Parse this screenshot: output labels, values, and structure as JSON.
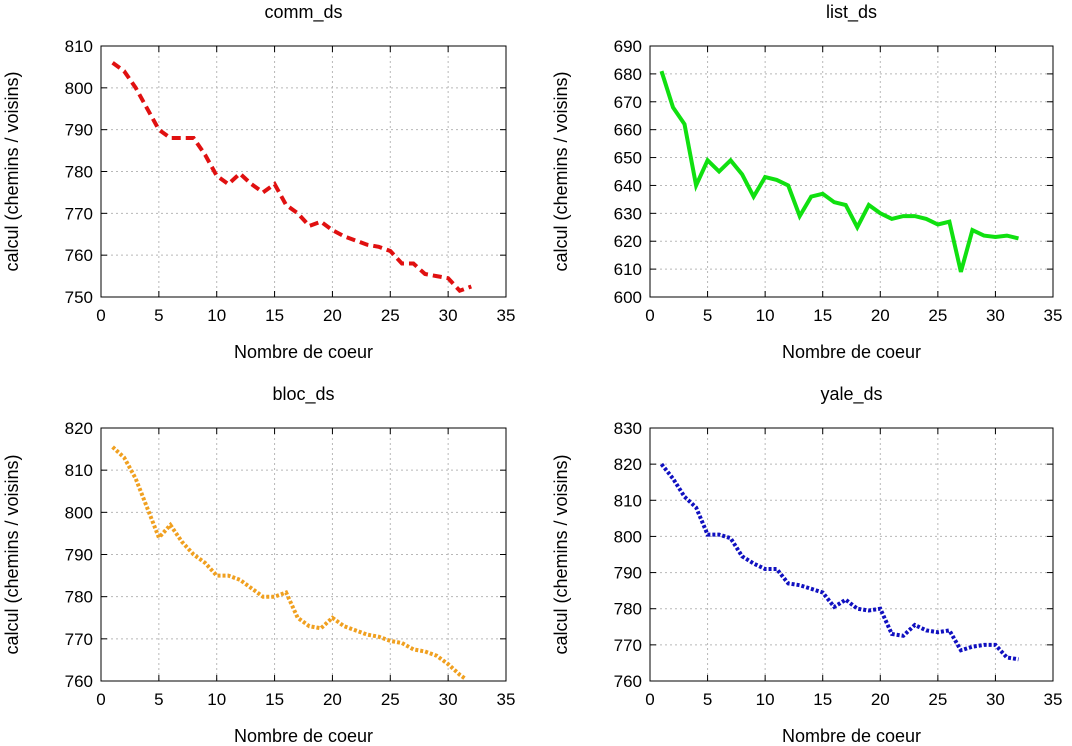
{
  "chart_data": [
    {
      "type": "line",
      "title": "comm_ds",
      "xlabel": "Nombre de coeur",
      "ylabel": "calcul (chemins / voisins)",
      "xlim": [
        0,
        35
      ],
      "ylim": [
        750,
        810
      ],
      "xticks": [
        0,
        5,
        10,
        15,
        20,
        25,
        30,
        35
      ],
      "yticks": [
        750,
        760,
        770,
        780,
        790,
        800,
        810
      ],
      "grid": true,
      "line_style": "dashed",
      "series": [
        {
          "color": "#e01010",
          "x": [
            1,
            2,
            3,
            4,
            5,
            6,
            7,
            8,
            9,
            10,
            11,
            12,
            13,
            14,
            15,
            16,
            17,
            18,
            19,
            20,
            21,
            22,
            23,
            24,
            25,
            26,
            27,
            28,
            29,
            30,
            31,
            32
          ],
          "y": [
            806,
            804,
            800,
            795,
            790,
            788,
            788,
            788,
            784,
            779,
            777,
            779.5,
            777,
            775,
            777,
            772,
            770,
            767,
            768,
            766,
            764.5,
            763.5,
            762.5,
            762,
            761,
            758,
            758,
            755.5,
            755,
            754.5,
            751.5,
            752.5
          ]
        }
      ]
    },
    {
      "type": "line",
      "title": "list_ds",
      "xlabel": "Nombre de coeur",
      "ylabel": "calcul (chemins / voisins)",
      "xlim": [
        0,
        35
      ],
      "ylim": [
        600,
        690
      ],
      "xticks": [
        0,
        5,
        10,
        15,
        20,
        25,
        30,
        35
      ],
      "yticks": [
        600,
        610,
        620,
        630,
        640,
        650,
        660,
        670,
        680,
        690
      ],
      "grid": true,
      "line_style": "solid",
      "series": [
        {
          "color": "#10e010",
          "x": [
            1,
            2,
            3,
            4,
            5,
            6,
            7,
            8,
            9,
            10,
            11,
            12,
            13,
            14,
            15,
            16,
            17,
            18,
            19,
            20,
            21,
            22,
            23,
            24,
            25,
            26,
            27,
            28,
            29,
            30,
            31,
            32
          ],
          "y": [
            681,
            668,
            662,
            640,
            649,
            645,
            649,
            644,
            636,
            643,
            642,
            640,
            629,
            636,
            637,
            634,
            633,
            625,
            633,
            630,
            628,
            629,
            629,
            628,
            626,
            627,
            609,
            624,
            622,
            621.5,
            622,
            621
          ]
        }
      ]
    },
    {
      "type": "line",
      "title": "bloc_ds",
      "xlabel": "Nombre de coeur",
      "ylabel": "calcul (chemins / voisins)",
      "xlim": [
        0,
        35
      ],
      "ylim": [
        760,
        820
      ],
      "xticks": [
        0,
        5,
        10,
        15,
        20,
        25,
        30,
        35
      ],
      "yticks": [
        760,
        770,
        780,
        790,
        800,
        810,
        820
      ],
      "grid": true,
      "line_style": "dotted",
      "series": [
        {
          "color": "#f0a020",
          "x": [
            1,
            2,
            3,
            4,
            5,
            6,
            7,
            8,
            9,
            10,
            11,
            12,
            13,
            14,
            15,
            16,
            17,
            18,
            19,
            20,
            21,
            22,
            23,
            24,
            25,
            26,
            27,
            28,
            29,
            30,
            31,
            31.5
          ],
          "y": [
            815.5,
            813,
            808,
            801,
            794,
            797,
            793,
            790,
            788,
            785,
            785,
            784,
            782,
            780,
            780,
            781,
            775,
            773,
            772.5,
            775,
            773,
            772,
            771,
            770.5,
            769.5,
            769,
            767.5,
            767,
            766,
            764,
            761.5,
            760.5
          ]
        }
      ]
    },
    {
      "type": "line",
      "title": "yale_ds",
      "xlabel": "Nombre de coeur",
      "ylabel": "calcul (chemins / voisins)",
      "xlim": [
        0,
        35
      ],
      "ylim": [
        760,
        830
      ],
      "xticks": [
        0,
        5,
        10,
        15,
        20,
        25,
        30,
        35
      ],
      "yticks": [
        760,
        770,
        780,
        790,
        800,
        810,
        820,
        830
      ],
      "grid": true,
      "line_style": "dotted",
      "series": [
        {
          "color": "#1010c0",
          "x": [
            1,
            2,
            3,
            4,
            5,
            6,
            7,
            8,
            9,
            10,
            11,
            12,
            13,
            14,
            15,
            16,
            17,
            18,
            19,
            20,
            21,
            22,
            23,
            24,
            25,
            26,
            27,
            28,
            29,
            30,
            31,
            32
          ],
          "y": [
            820,
            816,
            811,
            808,
            800.5,
            800.5,
            799.5,
            794.5,
            792.5,
            791,
            791,
            787,
            786.5,
            785.5,
            784.5,
            780.5,
            782.5,
            780,
            779.5,
            780,
            773,
            772.5,
            775.5,
            774,
            773.5,
            774,
            768.5,
            769.5,
            770,
            770,
            766.5,
            766
          ]
        }
      ]
    }
  ]
}
